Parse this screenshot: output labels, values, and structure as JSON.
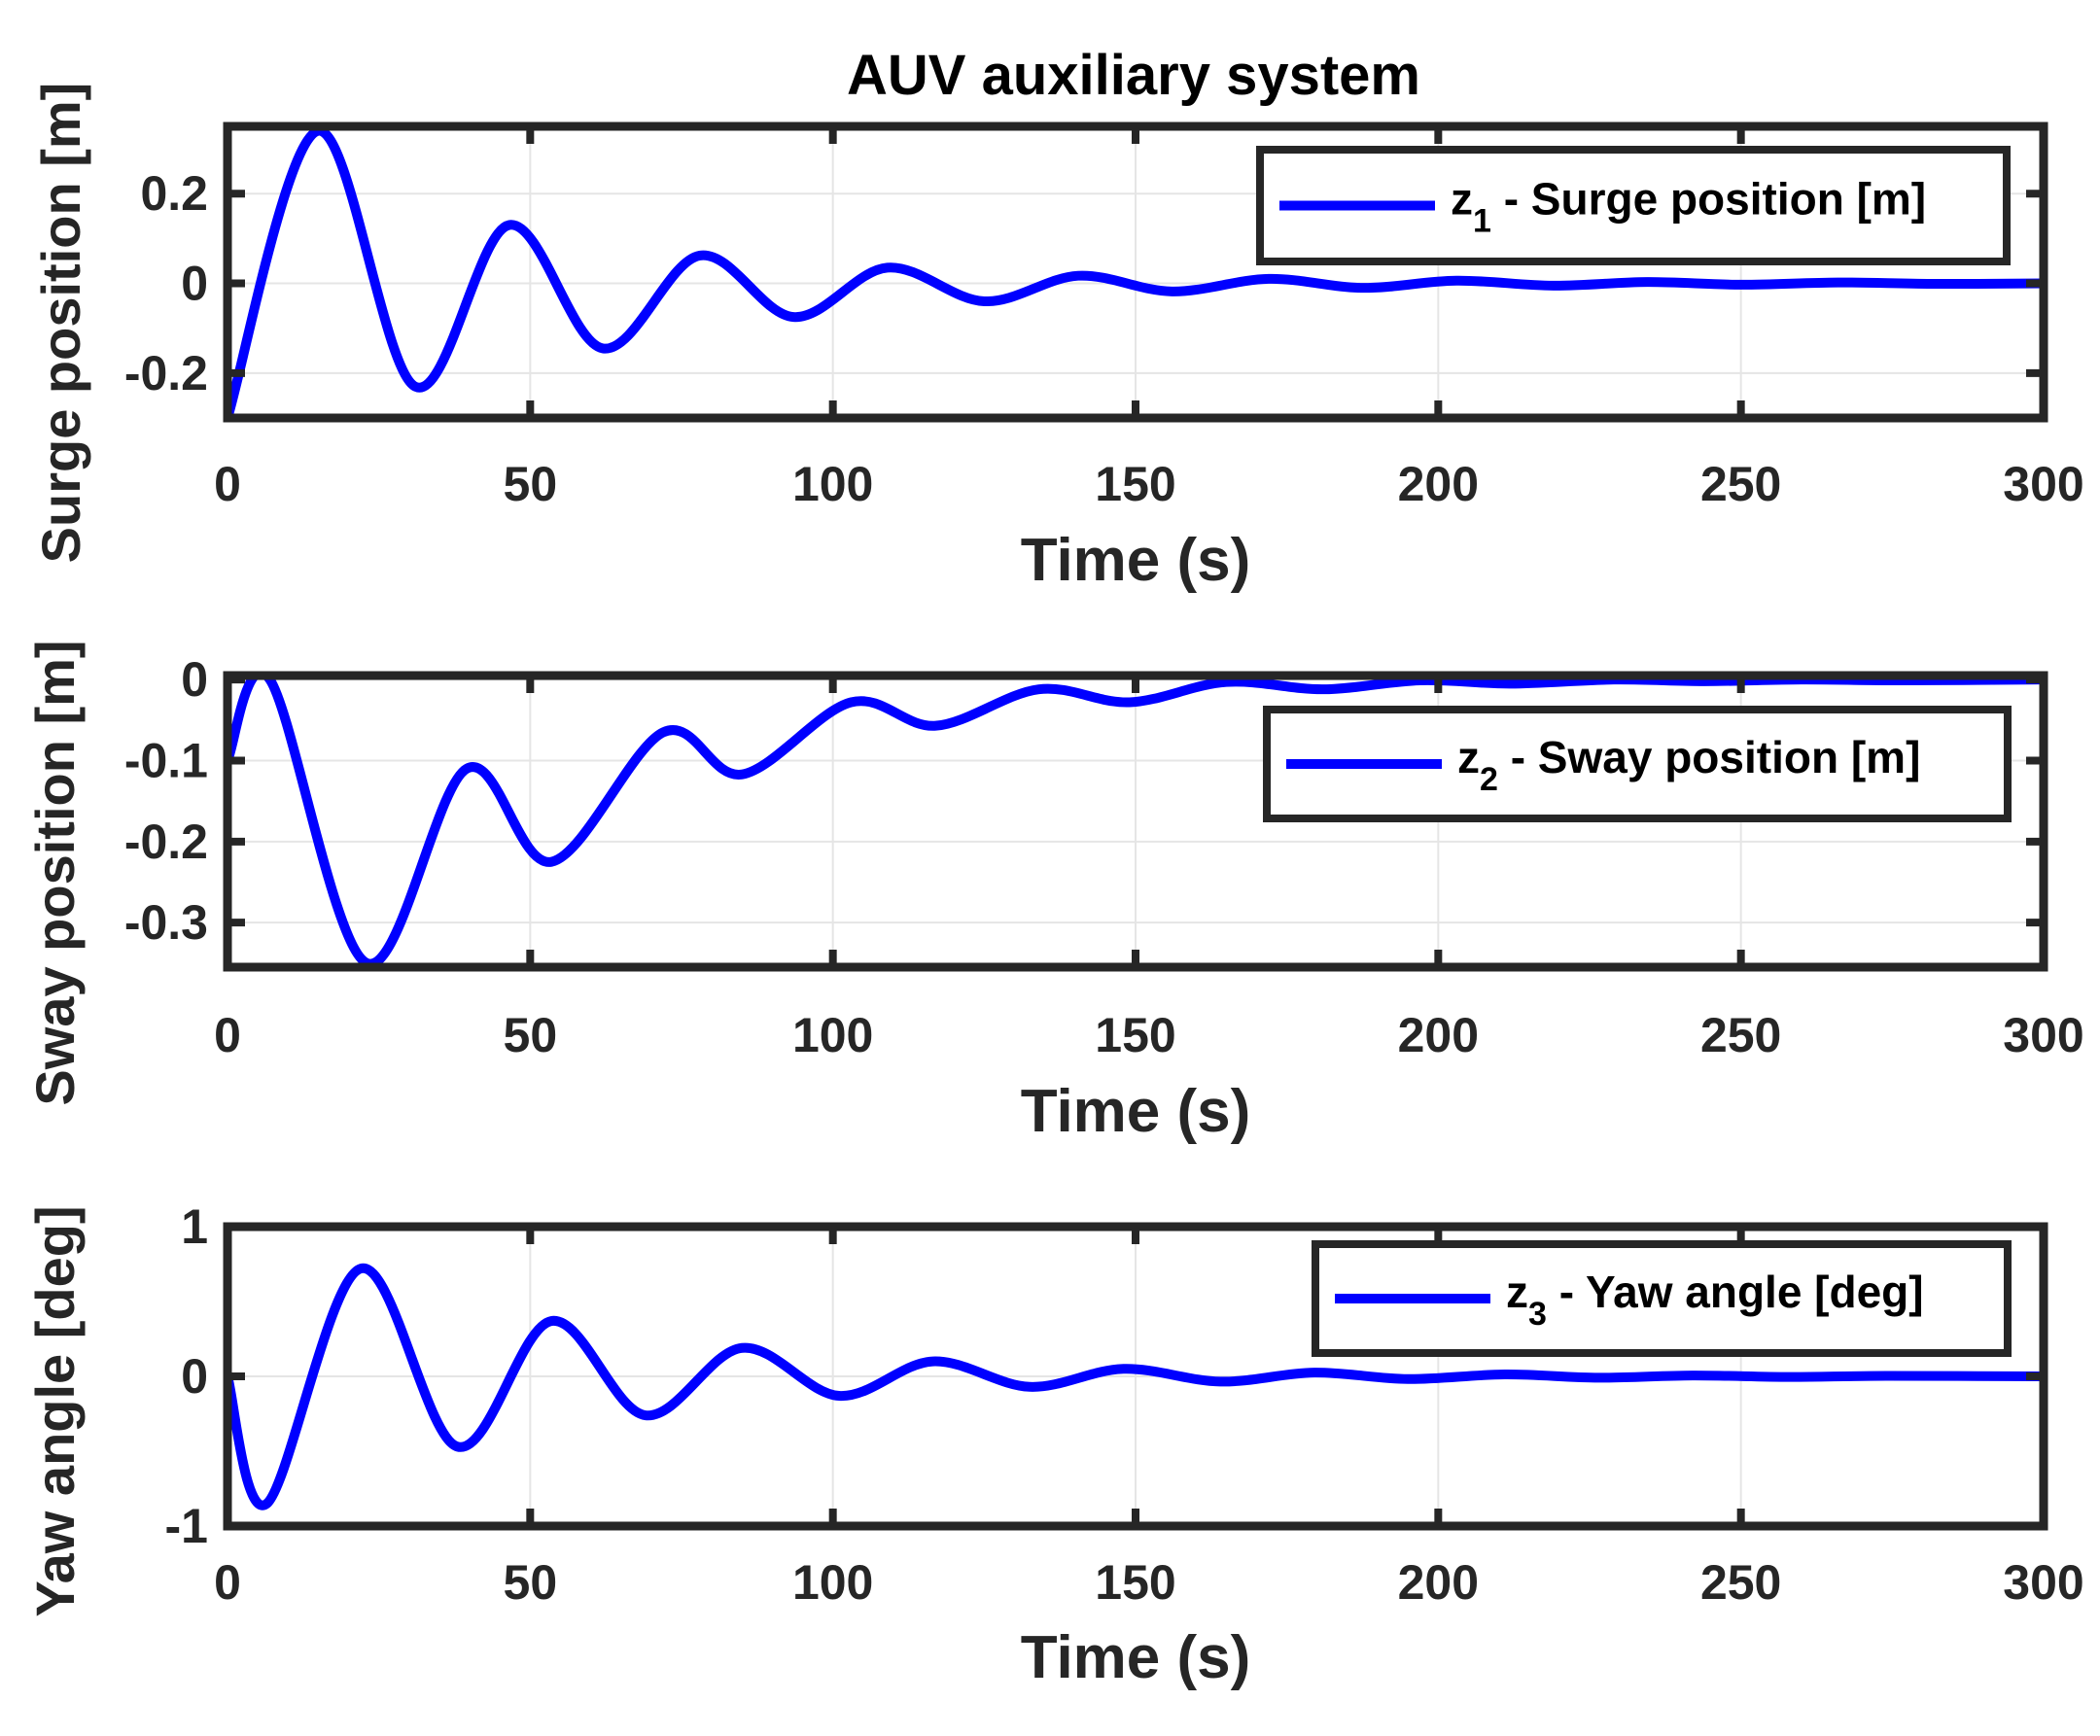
{
  "chart_data": [
    {
      "type": "line",
      "title": "AUV auxiliary system",
      "xlabel": "Time (s)",
      "ylabel": "Surge position [m]",
      "xlim": [
        0,
        300
      ],
      "ylim": [
        -0.3,
        0.35
      ],
      "xticks": [
        0,
        50,
        100,
        150,
        200,
        250,
        300
      ],
      "xtick_labels": [
        "0",
        "50",
        "100",
        "150",
        "200",
        "250",
        "300"
      ],
      "yticks": [
        -0.2,
        0,
        0.2
      ],
      "ytick_labels": [
        "-0.2",
        "0",
        "0.2"
      ],
      "grid": true,
      "legend_position": "top-right",
      "colors": {
        "line": "#0000ff",
        "axes": "#262626",
        "grid": "#e5e5e5"
      },
      "series": [
        {
          "name": "Surge position [m]",
          "legend_var": "z",
          "legend_sub": "1",
          "legend_rest": " - Surge position [m]",
          "x": [
            0,
            15,
            31,
            46.5,
            62,
            78,
            93.5,
            109,
            125,
            140.5,
            156,
            172,
            187.5,
            203,
            219,
            234.5,
            250,
            266,
            281.5,
            300
          ],
          "y": [
            -0.3,
            0.34,
            -0.23,
            0.13,
            -0.145,
            0.062,
            -0.075,
            0.035,
            -0.04,
            0.017,
            -0.018,
            0.01,
            -0.01,
            0.006,
            -0.005,
            0.003,
            -0.003,
            0.002,
            -0.001,
            0
          ]
        }
      ]
    },
    {
      "type": "line",
      "title": "",
      "xlabel": "Time (s)",
      "ylabel": "Sway position [m]",
      "xlim": [
        0,
        300
      ],
      "ylim": [
        -0.355,
        0.005
      ],
      "xticks": [
        0,
        50,
        100,
        150,
        200,
        250,
        300
      ],
      "xtick_labels": [
        "0",
        "50",
        "100",
        "150",
        "200",
        "250",
        "300"
      ],
      "yticks": [
        -0.3,
        -0.2,
        -0.1,
        0
      ],
      "ytick_labels": [
        "-0.3",
        "-0.2",
        "-0.1",
        "0"
      ],
      "grid": true,
      "legend_position": "top-right",
      "colors": {
        "line": "#0000ff",
        "axes": "#262626",
        "grid": "#e5e5e5"
      },
      "series": [
        {
          "name": "Sway position [m]",
          "legend_var": "z",
          "legend_sub": "2",
          "legend_rest": " - Sway position [m]",
          "x": [
            0,
            7,
            23,
            39.5,
            53.5,
            72,
            85,
            103,
            117,
            134,
            149,
            165,
            181,
            197,
            212,
            229,
            244,
            260,
            276,
            300
          ],
          "y": [
            -0.1,
            0.0,
            -0.35,
            -0.11,
            -0.225,
            -0.065,
            -0.117,
            -0.028,
            -0.057,
            -0.012,
            -0.028,
            -0.003,
            -0.012,
            -0.001,
            -0.005,
            0.0,
            -0.002,
            0.0,
            -0.001,
            0.0
          ]
        }
      ]
    },
    {
      "type": "line",
      "title": "",
      "xlabel": "Time (s)",
      "ylabel": "Yaw angle [deg]",
      "xlim": [
        0,
        300
      ],
      "ylim": [
        -1,
        1
      ],
      "xticks": [
        0,
        50,
        100,
        150,
        200,
        250,
        300
      ],
      "xtick_labels": [
        "0",
        "50",
        "100",
        "150",
        "200",
        "250",
        "300"
      ],
      "yticks": [
        -1,
        0,
        1
      ],
      "ytick_labels": [
        "-1",
        "0",
        "1"
      ],
      "grid": true,
      "legend_position": "top-right",
      "colors": {
        "line": "#0000ff",
        "axes": "#262626",
        "grid": "#e5e5e5"
      },
      "series": [
        {
          "name": "Yaw angle [deg]",
          "legend_var": "z",
          "legend_sub": "3",
          "legend_rest": " - Yaw angle [deg]",
          "x": [
            0,
            6.5,
            22,
            38,
            53.5,
            69,
            85,
            101,
            116.5,
            132.5,
            148,
            164,
            179.5,
            195,
            211,
            226.5,
            242,
            258,
            274,
            300
          ],
          "y": [
            0,
            -0.85,
            0.72,
            -0.47,
            0.37,
            -0.26,
            0.19,
            -0.13,
            0.1,
            -0.07,
            0.05,
            -0.035,
            0.025,
            -0.018,
            0.013,
            -0.009,
            0.006,
            -0.004,
            0.003,
            0
          ]
        }
      ]
    }
  ]
}
